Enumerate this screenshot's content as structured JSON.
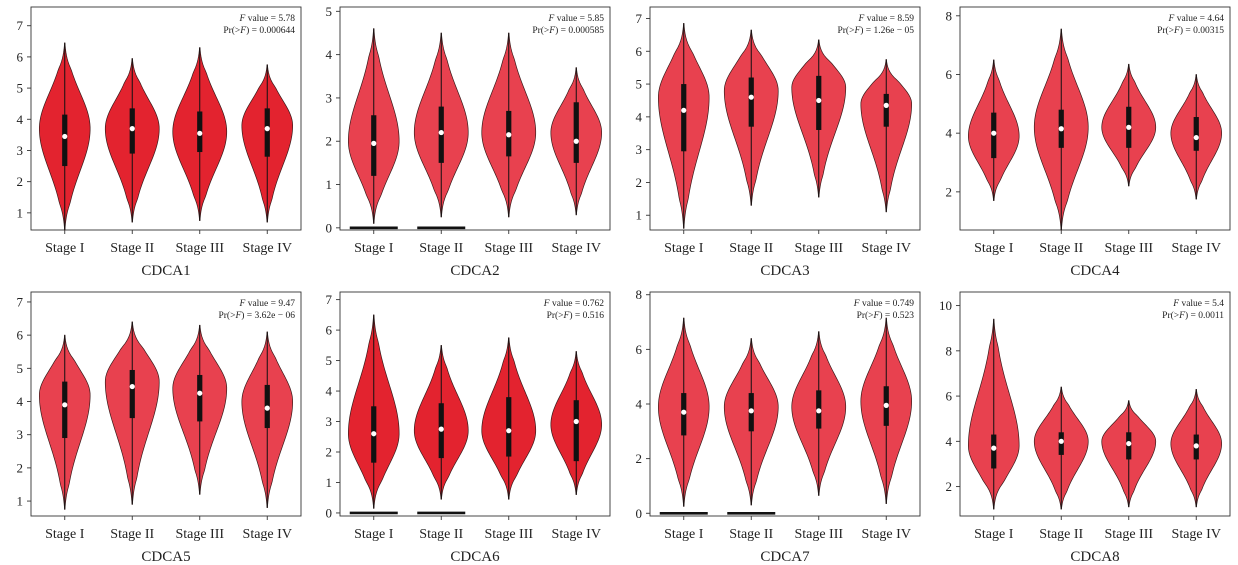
{
  "colors": {
    "violin_fill": "#e8414f",
    "violin_fill_dark": "#e3232f",
    "violin_stroke": "#3a1a1a",
    "box": "#111111",
    "median": "#ffffff"
  },
  "chart_data": [
    {
      "type": "violin",
      "title": "CDCA1",
      "stat_f": "5.78",
      "stat_p": "0.000644",
      "categories": [
        "Stage I",
        "Stage II",
        "Stage III",
        "Stage IV"
      ],
      "yticks": [
        1,
        2,
        3,
        4,
        5,
        6,
        7
      ],
      "ylim": [
        0.45,
        7.6
      ],
      "fill": "dark",
      "groups": [
        {
          "min": 0.45,
          "q1": 2.5,
          "median": 3.45,
          "q3": 4.15,
          "max": 6.45,
          "mode": 3.7,
          "width": 0.8
        },
        {
          "min": 0.7,
          "q1": 2.9,
          "median": 3.7,
          "q3": 4.35,
          "max": 5.95,
          "mode": 3.7,
          "width": 0.85
        },
        {
          "min": 0.75,
          "q1": 2.95,
          "median": 3.55,
          "q3": 4.25,
          "max": 6.3,
          "mode": 3.6,
          "width": 0.85
        },
        {
          "min": 0.7,
          "q1": 2.8,
          "median": 3.7,
          "q3": 4.35,
          "max": 5.75,
          "mode": 3.8,
          "width": 0.8
        }
      ],
      "zero_lines": []
    },
    {
      "type": "violin",
      "title": "CDCA2",
      "stat_f": "5.85",
      "stat_p": "0.000585",
      "categories": [
        "Stage I",
        "Stage II",
        "Stage III",
        "Stage IV"
      ],
      "yticks": [
        0,
        1,
        2,
        3,
        4,
        5
      ],
      "ylim": [
        -0.05,
        5.1
      ],
      "fill": "light",
      "groups": [
        {
          "min": 0.1,
          "q1": 1.2,
          "median": 1.95,
          "q3": 2.6,
          "max": 4.6,
          "mode": 2.0,
          "width": 0.8
        },
        {
          "min": 0.25,
          "q1": 1.5,
          "median": 2.2,
          "q3": 2.8,
          "max": 4.5,
          "mode": 2.2,
          "width": 0.85
        },
        {
          "min": 0.25,
          "q1": 1.65,
          "median": 2.15,
          "q3": 2.7,
          "max": 4.5,
          "mode": 2.2,
          "width": 0.85
        },
        {
          "min": 0.3,
          "q1": 1.5,
          "median": 2.0,
          "q3": 2.9,
          "max": 3.7,
          "mode": 2.2,
          "width": 0.8
        }
      ],
      "zero_lines": [
        0,
        1
      ]
    },
    {
      "type": "violin",
      "title": "CDCA3",
      "stat_f": "8.59",
      "stat_p": "1.26e − 05",
      "categories": [
        "Stage I",
        "Stage II",
        "Stage III",
        "Stage IV"
      ],
      "yticks": [
        1,
        2,
        3,
        4,
        5,
        6,
        7
      ],
      "ylim": [
        0.55,
        7.35
      ],
      "fill": "light",
      "groups": [
        {
          "min": 0.6,
          "q1": 2.95,
          "median": 4.2,
          "q3": 5.0,
          "max": 6.85,
          "mode": 4.6,
          "width": 0.8
        },
        {
          "min": 1.3,
          "q1": 3.7,
          "median": 4.6,
          "q3": 5.2,
          "max": 6.65,
          "mode": 4.8,
          "width": 0.85
        },
        {
          "min": 1.55,
          "q1": 3.6,
          "median": 4.5,
          "q3": 5.25,
          "max": 6.35,
          "mode": 4.9,
          "width": 0.85
        },
        {
          "min": 1.1,
          "q1": 3.7,
          "median": 4.35,
          "q3": 4.7,
          "max": 5.75,
          "mode": 4.4,
          "width": 0.8
        }
      ],
      "zero_lines": []
    },
    {
      "type": "violin",
      "title": "CDCA4",
      "stat_f": "4.64",
      "stat_p": "0.00315",
      "categories": [
        "Stage I",
        "Stage II",
        "Stage III",
        "Stage IV"
      ],
      "yticks": [
        2,
        4,
        6,
        8
      ],
      "ylim": [
        0.7,
        8.3
      ],
      "fill": "light",
      "groups": [
        {
          "min": 1.7,
          "q1": 3.15,
          "median": 4.0,
          "q3": 4.7,
          "max": 6.5,
          "mode": 3.9,
          "width": 0.8
        },
        {
          "min": 0.7,
          "q1": 3.5,
          "median": 4.15,
          "q3": 4.8,
          "max": 7.55,
          "mode": 4.2,
          "width": 0.85
        },
        {
          "min": 2.2,
          "q1": 3.5,
          "median": 4.2,
          "q3": 4.9,
          "max": 6.35,
          "mode": 4.2,
          "width": 0.85
        },
        {
          "min": 1.75,
          "q1": 3.4,
          "median": 3.85,
          "q3": 4.55,
          "max": 6.0,
          "mode": 4.0,
          "width": 0.8
        }
      ],
      "zero_lines": []
    },
    {
      "type": "violin",
      "title": "CDCA5",
      "stat_f": "9.47",
      "stat_p": "3.62e − 06",
      "categories": [
        "Stage I",
        "Stage II",
        "Stage III",
        "Stage IV"
      ],
      "yticks": [
        1,
        2,
        3,
        4,
        5,
        6,
        7
      ],
      "ylim": [
        0.55,
        7.3
      ],
      "fill": "light",
      "groups": [
        {
          "min": 0.75,
          "q1": 2.9,
          "median": 3.9,
          "q3": 4.6,
          "max": 6.0,
          "mode": 4.2,
          "width": 0.8
        },
        {
          "min": 0.9,
          "q1": 3.5,
          "median": 4.45,
          "q3": 4.95,
          "max": 6.4,
          "mode": 4.6,
          "width": 0.85
        },
        {
          "min": 1.2,
          "q1": 3.4,
          "median": 4.25,
          "q3": 4.8,
          "max": 6.3,
          "mode": 4.4,
          "width": 0.85
        },
        {
          "min": 0.8,
          "q1": 3.2,
          "median": 3.8,
          "q3": 4.5,
          "max": 6.1,
          "mode": 4.0,
          "width": 0.8
        }
      ],
      "zero_lines": []
    },
    {
      "type": "violin",
      "title": "CDCA6",
      "stat_f": "0.762",
      "stat_p": "0.516",
      "categories": [
        "Stage I",
        "Stage II",
        "Stage III",
        "Stage IV"
      ],
      "yticks": [
        0,
        1,
        2,
        3,
        4,
        5,
        6,
        7
      ],
      "ylim": [
        -0.1,
        7.25
      ],
      "fill": "dark",
      "groups": [
        {
          "min": 0.15,
          "q1": 1.65,
          "median": 2.6,
          "q3": 3.5,
          "max": 6.5,
          "mode": 2.6,
          "width": 0.8
        },
        {
          "min": 0.45,
          "q1": 1.8,
          "median": 2.75,
          "q3": 3.6,
          "max": 5.5,
          "mode": 2.7,
          "width": 0.85
        },
        {
          "min": 0.45,
          "q1": 1.85,
          "median": 2.7,
          "q3": 3.8,
          "max": 5.75,
          "mode": 2.7,
          "width": 0.85
        },
        {
          "min": 0.6,
          "q1": 1.7,
          "median": 3.0,
          "q3": 3.7,
          "max": 5.3,
          "mode": 2.9,
          "width": 0.8
        }
      ],
      "zero_lines": [
        0,
        1
      ]
    },
    {
      "type": "violin",
      "title": "CDCA7",
      "stat_f": "0.749",
      "stat_p": "0.523",
      "categories": [
        "Stage I",
        "Stage II",
        "Stage III",
        "Stage IV"
      ],
      "yticks": [
        0,
        2,
        4,
        6,
        8
      ],
      "ylim": [
        -0.1,
        8.1
      ],
      "fill": "light",
      "groups": [
        {
          "min": 0.25,
          "q1": 2.85,
          "median": 3.7,
          "q3": 4.4,
          "max": 7.15,
          "mode": 3.9,
          "width": 0.8
        },
        {
          "min": 0.3,
          "q1": 3.0,
          "median": 3.75,
          "q3": 4.4,
          "max": 6.4,
          "mode": 3.9,
          "width": 0.85
        },
        {
          "min": 0.65,
          "q1": 3.1,
          "median": 3.75,
          "q3": 4.5,
          "max": 6.65,
          "mode": 3.9,
          "width": 0.85
        },
        {
          "min": 0.35,
          "q1": 3.2,
          "median": 3.95,
          "q3": 4.65,
          "max": 7.15,
          "mode": 4.1,
          "width": 0.8
        }
      ],
      "zero_lines": [
        0,
        1
      ]
    },
    {
      "type": "violin",
      "title": "CDCA8",
      "stat_f": "5.4",
      "stat_p": "0.0011",
      "categories": [
        "Stage I",
        "Stage II",
        "Stage III",
        "Stage IV"
      ],
      "yticks": [
        2,
        4,
        6,
        8,
        10
      ],
      "ylim": [
        0.7,
        10.6
      ],
      "fill": "light",
      "groups": [
        {
          "min": 1.0,
          "q1": 2.8,
          "median": 3.7,
          "q3": 4.3,
          "max": 9.4,
          "mode": 3.8,
          "width": 0.8
        },
        {
          "min": 1.0,
          "q1": 3.4,
          "median": 4.0,
          "q3": 4.4,
          "max": 6.4,
          "mode": 4.0,
          "width": 0.85
        },
        {
          "min": 1.1,
          "q1": 3.2,
          "median": 3.9,
          "q3": 4.4,
          "max": 5.8,
          "mode": 4.0,
          "width": 0.85
        },
        {
          "min": 1.1,
          "q1": 3.2,
          "median": 3.8,
          "q3": 4.3,
          "max": 6.3,
          "mode": 3.9,
          "width": 0.8
        }
      ],
      "zero_lines": []
    }
  ]
}
